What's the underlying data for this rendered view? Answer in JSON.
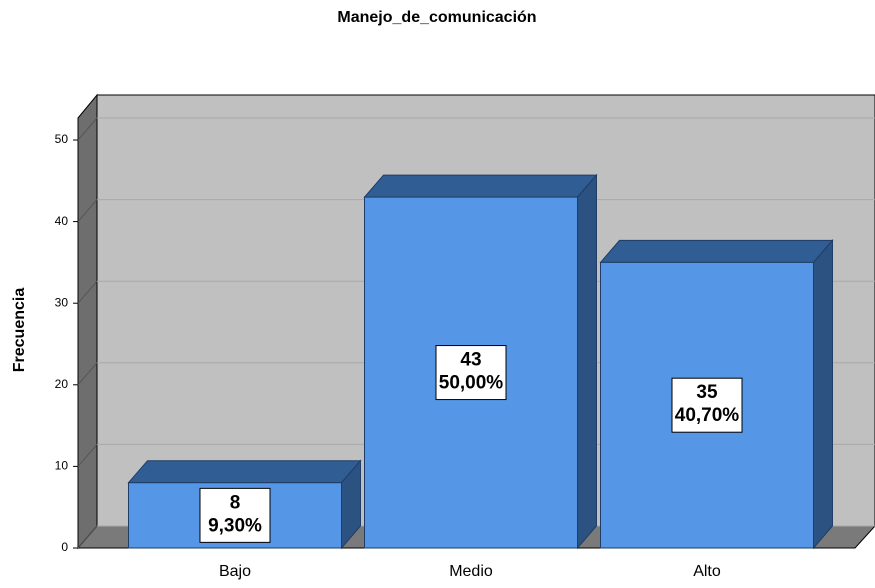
{
  "chart_data": {
    "type": "bar3d",
    "title": "Manejo_de_comunicación",
    "y_label": "Frecuencia",
    "categories": [
      "Bajo",
      "Medio",
      "Alto"
    ],
    "values": [
      8,
      43,
      35
    ],
    "percents": [
      9.3,
      50,
      40.7
    ],
    "percent_labels": [
      "9,30%",
      "50,00%",
      "40,70%"
    ],
    "color": "#5596e6",
    "ylim": [
      0,
      50
    ],
    "yticks": [
      0,
      10,
      20,
      30,
      40,
      50
    ],
    "grid": true
  }
}
